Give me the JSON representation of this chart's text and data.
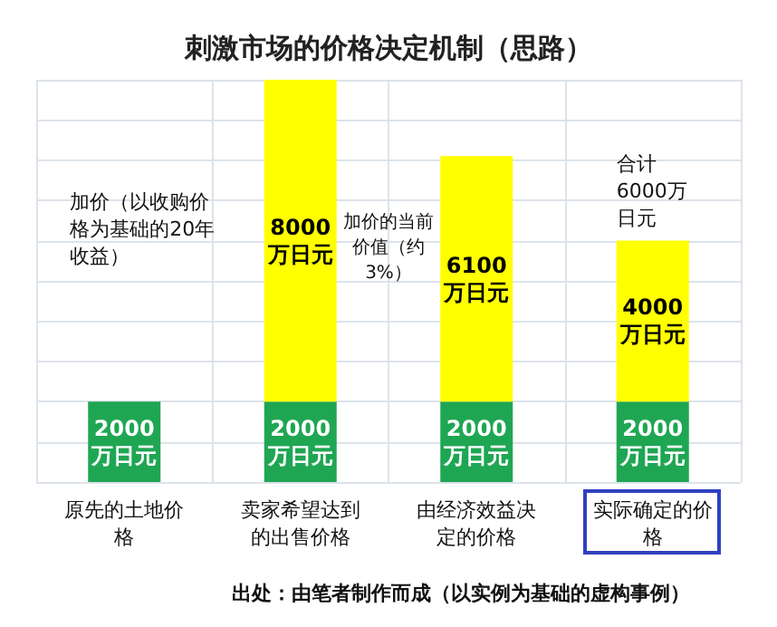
{
  "chart_data": {
    "type": "bar",
    "title": "刺激市场的价格决定机制（思路）",
    "categories": [
      "原先的土地价格",
      "卖家希望达到的出售价格",
      "由经济效益决定的价格",
      "实际确定的价格"
    ],
    "stacked": true,
    "grid": true,
    "series": [
      {
        "color": "#1fa653",
        "values": [
          2000,
          2000,
          2000,
          2000
        ],
        "value_labels": [
          "2000万日元",
          "2000万日元",
          "2000万日元",
          "2000万日元"
        ]
      },
      {
        "color": "#ffff00",
        "values": [
          null,
          8000,
          6100,
          4000
        ],
        "value_labels": [
          null,
          "8000万日元",
          "6100万日元",
          "4000万日元"
        ]
      }
    ],
    "annotations": [
      "加价（以收购价格为基础的20年收益）",
      "加价的当前价值（约3%）",
      "合计6000万日元",
      "出处：由笔者制作而成（以实例为基础的虚构事例）"
    ]
  }
}
